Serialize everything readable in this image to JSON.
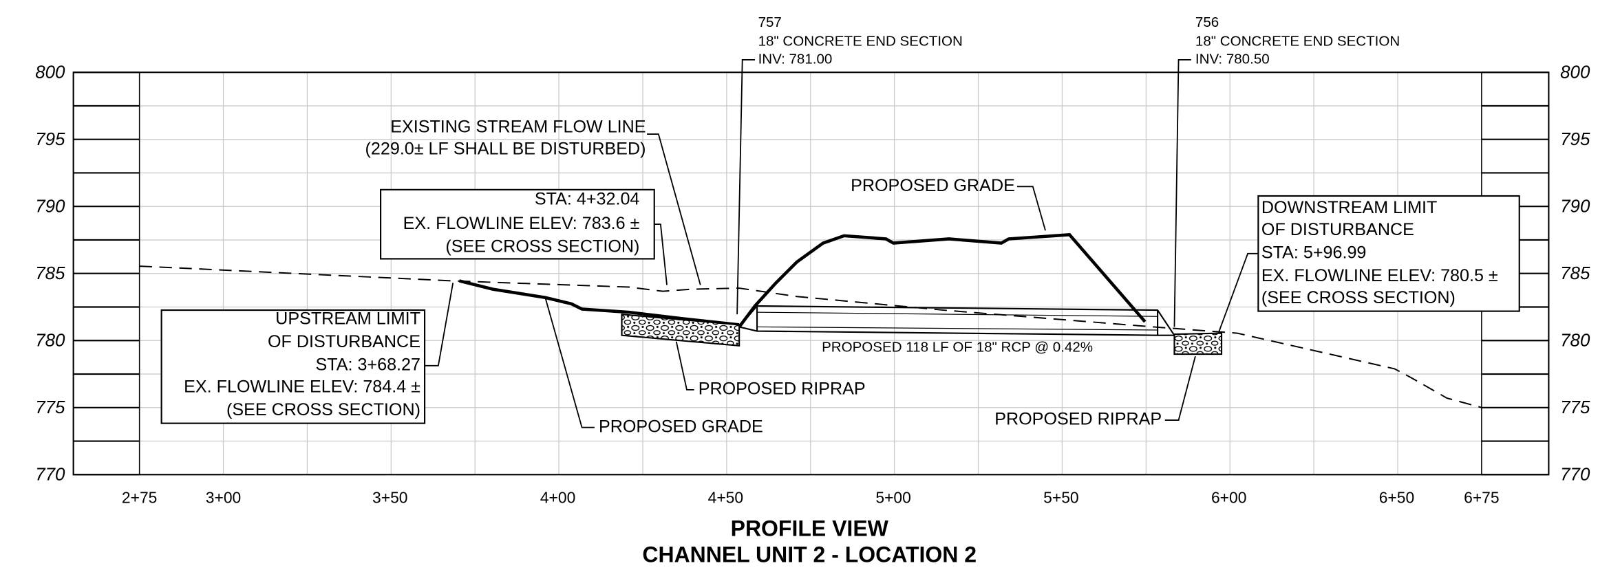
{
  "elevation_labels": [
    "800",
    "795",
    "790",
    "785",
    "780",
    "775",
    "770"
  ],
  "station_labels": [
    "2+75",
    "3+00",
    "3+50",
    "4+00",
    "4+50",
    "5+00",
    "5+50",
    "6+00",
    "6+50",
    "6+75"
  ],
  "end_section_757": {
    "id": "757",
    "type": "18\" CONCRETE END SECTION",
    "invert": "INV: 781.00"
  },
  "end_section_756": {
    "id": "756",
    "type": "18\" CONCRETE END SECTION",
    "invert": "INV: 780.50"
  },
  "existing_flow_line": [
    "EXISTING STREAM FLOW LINE",
    "(229.0± LF SHALL BE DISTURBED)"
  ],
  "flowline_note": [
    "STA: 4+32.04",
    "EX. FLOWLINE ELEV: 783.6 ±",
    "(SEE CROSS SECTION)"
  ],
  "proposed_grade_top": "PROPOSED GRADE",
  "downstream_limit": [
    "DOWNSTREAM LIMIT",
    "OF DISTURBANCE",
    "STA: 5+96.99",
    "EX. FLOWLINE ELEV: 780.5 ±",
    "(SEE CROSS SECTION)"
  ],
  "upstream_limit": [
    "UPSTREAM LIMIT",
    "OF DISTURBANCE",
    "STA: 3+68.27",
    "EX. FLOWLINE ELEV: 784.4 ±",
    "(SEE CROSS SECTION)"
  ],
  "pipe_label": "PROPOSED 118 LF OF 18\" RCP @ 0.42%",
  "riprap_left": "PROPOSED RIPRAP",
  "proposed_grade_bottom": "PROPOSED GRADE",
  "riprap_right": "PROPOSED RIPRAP",
  "title": "PROFILE VIEW",
  "subtitle": "CHANNEL UNIT 2 - LOCATION 2"
}
